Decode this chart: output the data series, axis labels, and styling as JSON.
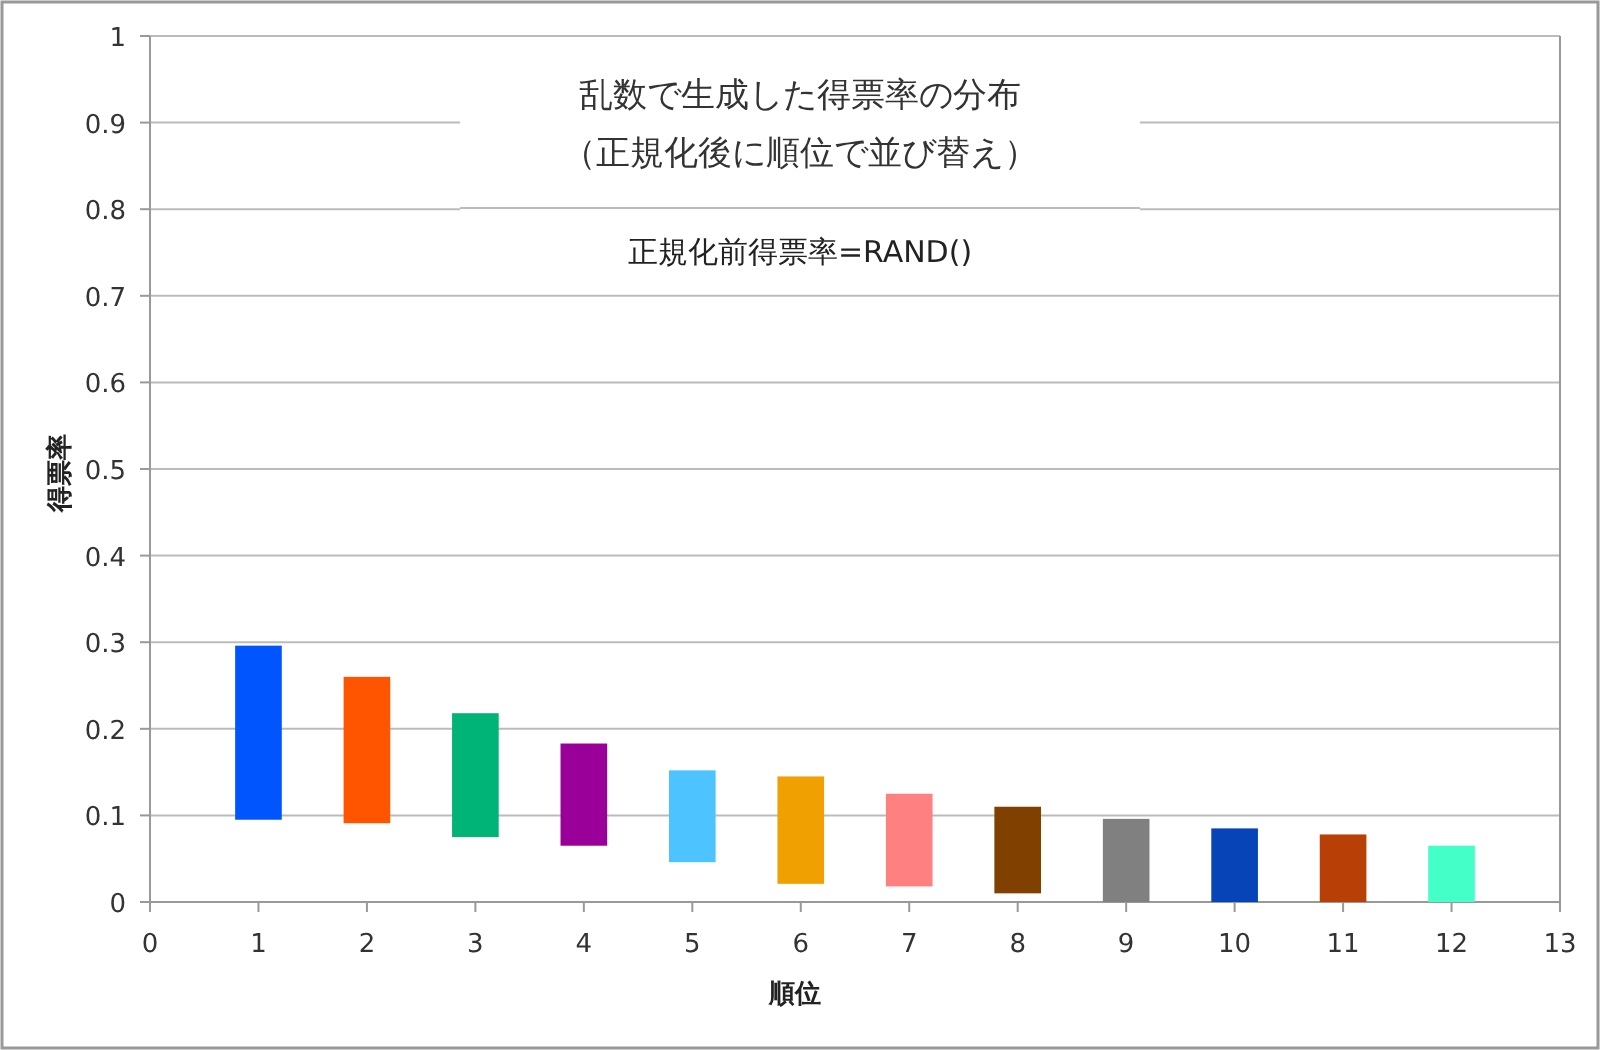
{
  "chart_data": {
    "type": "bar",
    "title": "乱数で生成した得票率の分布",
    "subtitle": "（正規化後に順位で並び替え）",
    "annotations": [
      "正規化前得票率=RAND()"
    ],
    "xlabel": "順位",
    "ylabel": "得票率",
    "x": [
      1,
      2,
      3,
      4,
      5,
      6,
      7,
      8,
      9,
      10,
      11,
      12
    ],
    "base": [
      0.095,
      0.091,
      0.075,
      0.065,
      0.046,
      0.021,
      0.018,
      0.01,
      0,
      0,
      0,
      0
    ],
    "values": [
      0.201,
      0.169,
      0.143,
      0.118,
      0.106,
      0.124,
      0.107,
      0.1,
      0.096,
      0.085,
      0.078,
      0.065
    ],
    "colors": [
      "#0055ff",
      "#ff5500",
      "#00b377",
      "#9a0099",
      "#4dc3ff",
      "#f0a000",
      "#ff8080",
      "#804000",
      "#808080",
      "#0644b8",
      "#b84006",
      "#44ffc8"
    ],
    "xlim": [
      0,
      13
    ],
    "xticks": [
      0,
      1,
      2,
      3,
      4,
      5,
      6,
      7,
      8,
      9,
      10,
      11,
      12,
      13
    ],
    "ylim": [
      0,
      1
    ],
    "yticks": [
      0,
      0.1,
      0.2,
      0.3,
      0.4,
      0.5,
      0.6,
      0.7,
      0.8,
      0.9,
      1
    ],
    "grid": "y"
  }
}
